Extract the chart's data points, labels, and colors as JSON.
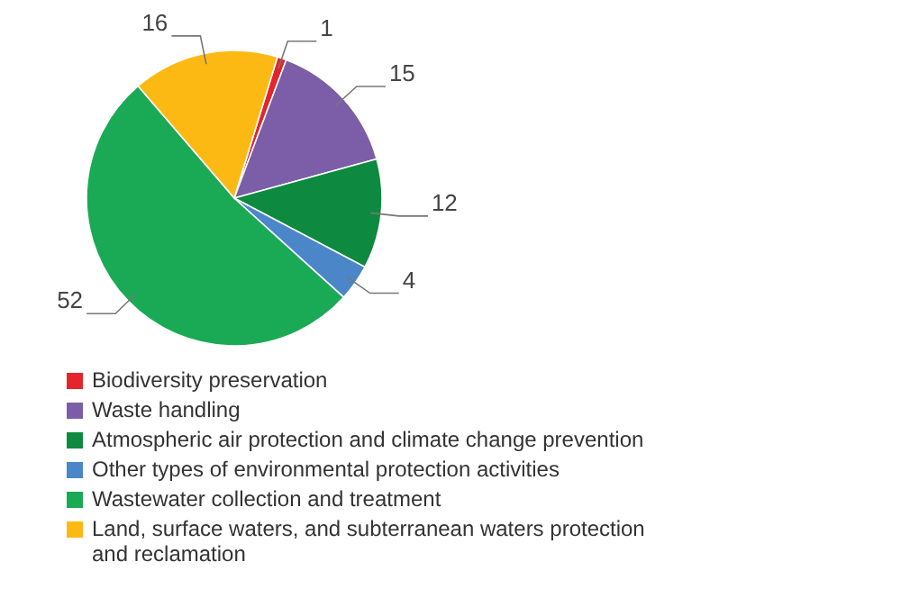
{
  "chart_data": {
    "type": "pie",
    "categories": [
      "Biodiversity preservation",
      "Waste handling",
      "Atmospheric air protection and climate change prevention",
      "Other types of environmental protection activities",
      "Wastewater collection and treatment",
      "Land, surface waters, and subterranean waters protection and reclamation"
    ],
    "values": [
      1,
      15,
      12,
      4,
      52,
      16
    ],
    "colors": [
      "#e4252b",
      "#7b5ea7",
      "#0d8a3f",
      "#4a86c8",
      "#1aaa55",
      "#fdb913"
    ],
    "data_labels": true,
    "legend": "bottom"
  }
}
